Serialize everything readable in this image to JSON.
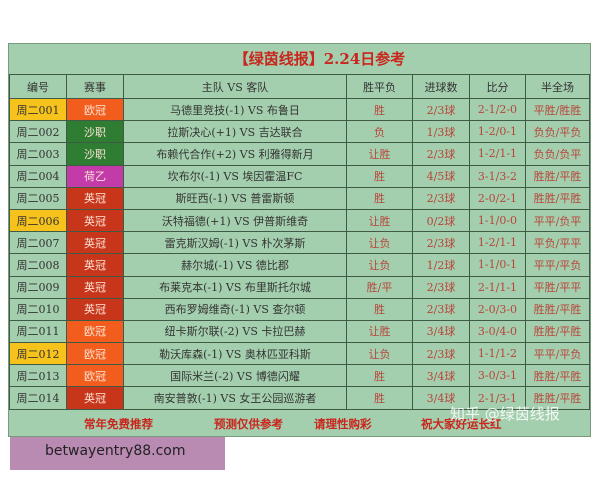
{
  "title": "【绿茵线报】2.24日参考",
  "headers": [
    "编号",
    "赛事",
    "主队 VS 客队",
    "胜平负",
    "进球数",
    "比分",
    "半全场"
  ],
  "league_colors": {
    "欧冠": "#f25d1d",
    "沙职": "#2e7d33",
    "荷乙": "#c23ba8",
    "英冠": "#c7361b"
  },
  "highlight_color": "#f6c31c",
  "rows": [
    {
      "id": "周二001",
      "league": "欧冠",
      "match": "马德里竞技(-1) VS 布鲁日",
      "wdl": "胜",
      "goals": "2/3球",
      "score": "2-1/2-0",
      "htft": "平胜/胜胜",
      "highlight": true
    },
    {
      "id": "周二002",
      "league": "沙职",
      "match": "拉斯决心(+1) VS 吉达联合",
      "wdl": "负",
      "goals": "1/3球",
      "score": "1-2/0-1",
      "htft": "负负/平负",
      "highlight": false
    },
    {
      "id": "周二003",
      "league": "沙职",
      "match": "布赖代合作(+2) VS 利雅得新月",
      "wdl": "让胜",
      "goals": "2/3球",
      "score": "1-2/1-1",
      "htft": "负负/负平",
      "highlight": false
    },
    {
      "id": "周二004",
      "league": "荷乙",
      "match": "坎布尔(-1) VS 埃因霍温FC",
      "wdl": "胜",
      "goals": "4/5球",
      "score": "3-1/3-2",
      "htft": "胜胜/平胜",
      "highlight": false
    },
    {
      "id": "周二005",
      "league": "英冠",
      "match": "斯旺西(-1) VS 普雷斯顿",
      "wdl": "胜",
      "goals": "2/3球",
      "score": "2-0/2-1",
      "htft": "胜胜/平胜",
      "highlight": false
    },
    {
      "id": "周二006",
      "league": "英冠",
      "match": "沃特福德(+1) VS 伊普斯维奇",
      "wdl": "让胜",
      "goals": "0/2球",
      "score": "1-1/0-0",
      "htft": "平平/负平",
      "highlight": true
    },
    {
      "id": "周二007",
      "league": "英冠",
      "match": "雷克斯汉姆(-1) VS 朴次茅斯",
      "wdl": "让负",
      "goals": "2/3球",
      "score": "1-2/1-1",
      "htft": "平负/平平",
      "highlight": false
    },
    {
      "id": "周二008",
      "league": "英冠",
      "match": "赫尔城(-1) VS 德比郡",
      "wdl": "让负",
      "goals": "1/2球",
      "score": "1-1/0-1",
      "htft": "平平/平负",
      "highlight": false
    },
    {
      "id": "周二009",
      "league": "英冠",
      "match": "布莱克本(-1) VS 布里斯托尔城",
      "wdl": "胜/平",
      "goals": "2/3球",
      "score": "2-1/1-1",
      "htft": "平胜/平平",
      "highlight": false
    },
    {
      "id": "周二010",
      "league": "英冠",
      "match": "西布罗姆维奇(-1) VS 查尔顿",
      "wdl": "胜",
      "goals": "2/3球",
      "score": "2-0/3-0",
      "htft": "胜胜/平胜",
      "highlight": false
    },
    {
      "id": "周二011",
      "league": "欧冠",
      "match": "纽卡斯尔联(-2) VS 卡拉巴赫",
      "wdl": "让胜",
      "goals": "3/4球",
      "score": "3-0/4-0",
      "htft": "胜胜/平胜",
      "highlight": false
    },
    {
      "id": "周二012",
      "league": "欧冠",
      "match": "勒沃库森(-1) VS 奥林匹亚科斯",
      "wdl": "让负",
      "goals": "2/3球",
      "score": "1-1/1-2",
      "htft": "平平/平负",
      "highlight": true
    },
    {
      "id": "周二013",
      "league": "欧冠",
      "match": "国际米兰(-2) VS 博德闪耀",
      "wdl": "胜",
      "goals": "3/4球",
      "score": "3-0/3-1",
      "htft": "胜胜/平胜",
      "highlight": false
    },
    {
      "id": "周二014",
      "league": "英冠",
      "match": "南安普敦(-1) VS 女王公园巡游者",
      "wdl": "胜",
      "goals": "3/4球",
      "score": "2-1/3-1",
      "htft": "胜胜/平胜",
      "highlight": false
    }
  ],
  "footer": [
    "常年免费推荐",
    "预测仅供参考",
    "请理性购彩",
    "祝大家好运长红"
  ],
  "watermark": "知乎 @绿茵线报",
  "ad_text": "betwayentry88.com"
}
